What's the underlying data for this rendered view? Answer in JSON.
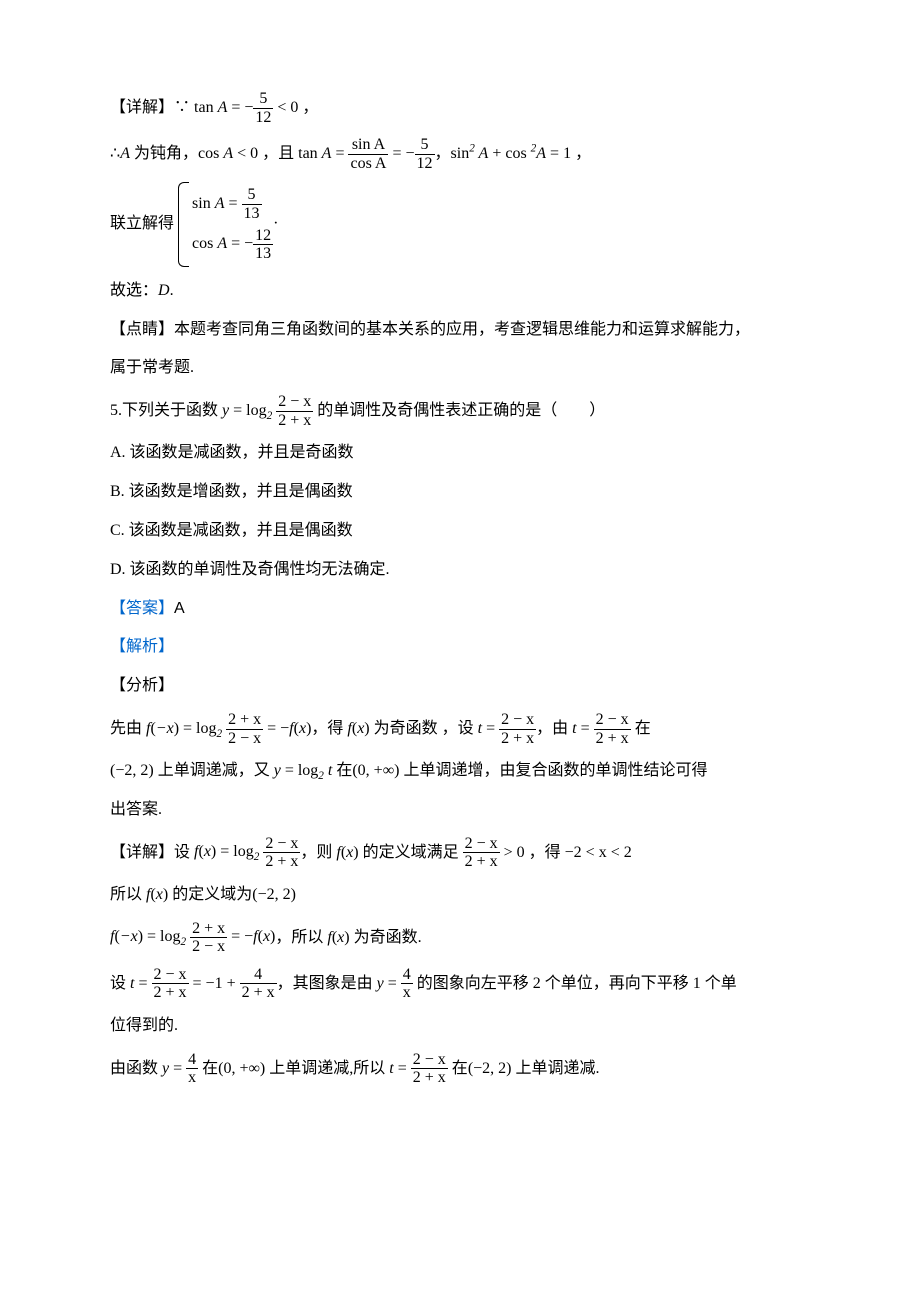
{
  "colors": {
    "text": "#000000",
    "blue": "#0066cc",
    "background": "#ffffff"
  },
  "detail_heading": "【详解】",
  "l1_p1": "∵ ",
  "l1_tan": "tan ",
  "l1_A": "A",
  "l1_eq": " = −",
  "l1_frac_num": "5",
  "l1_frac_den": "12",
  "l1_lt": " < 0 ，",
  "l2_pre": "∴",
  "l2_A": "A",
  "l2_p1": " 为钝角，",
  "l2_cos": "cos ",
  "l2_p2": " < 0 ，且 ",
  "l2_tan": "tan ",
  "l2_eqfrac_eq": " = ",
  "l2_frac1_num": "sin A",
  "l2_frac1_den": "cos A",
  "l2_eq2": " = −",
  "l2_frac2_num": "5",
  "l2_frac2_den": "12",
  "l2_comma": "，",
  "l2_sin2": "sin",
  "l2_sup2": "2",
  "l2_plus": " + ",
  "l2_eq1": " = 1 ，",
  "l3_label": "联立解得",
  "l3_row1_sin": "sin ",
  "l3_row1_A": "A",
  "l3_row1_eq": " = ",
  "l3_row1_num": "5",
  "l3_row1_den": "13",
  "l3_row2_cos": "cos ",
  "l3_row2_eq": " = −",
  "l3_row2_num": "12",
  "l3_row2_den": "13",
  "l3_dot": "·",
  "l4": "故选：",
  "l4_D": "D",
  "l4_dot": ".",
  "dianjing_heading": "【点睛】",
  "l5a": "本题考查同角三角函数间的基本关系的应用，考查逻辑思维能力和运算求解能力，",
  "l5b": "属于常考题.",
  "q5_pre": "5.下列关于函数 ",
  "q5_y": "y",
  "q5_eq": " = log",
  "q5_sub2": "2",
  "q5_sp": " ",
  "q5_frac_num": "2 − x",
  "q5_frac_den": "2 + x",
  "q5_post": " 的单调性及奇偶性表述正确的是（　　）",
  "optA": "A. 该函数是减函数，并且是奇函数",
  "optB": "B. 该函数是增函数，并且是偶函数",
  "optC": "C. 该函数是减函数，并且是偶函数",
  "optD": "D. 该函数的单调性及奇偶性均无法确定.",
  "answer_label": "【答案】",
  "answer_val": "A",
  "jiexi_label": "【解析】",
  "fenxi_label": "【分析】",
  "an1_pre": "先由 ",
  "an1_f": "f",
  "an1_paren_l": "(",
  "an1_negx": "−x",
  "an1_paren_r": ")",
  "an1_eq1": " = log",
  "an1_sub2": "2",
  "an1_frac1_num": "2 + x",
  "an1_frac1_den": "2 − x",
  "an1_eqneg": " = −",
  "an1_x": "x",
  "an1_mid": "，得 ",
  "an1_p2": " 为奇函数 ，设 ",
  "an1_t": "t",
  "an1_eq2": " = ",
  "an1_frac2_num": "2 − x",
  "an1_frac2_den": "2 + x",
  "an1_comma2": "，由 ",
  "an1_tail": " 在",
  "an2_int": "(−2, 2)",
  "an2_p1": " 上单调递减，又 ",
  "an2_y": "y",
  "an2_eqlog": " = log",
  "an2_t": " t",
  "an2_p2": " 在",
  "an2_int2": "(0, +∞)",
  "an2_p3": " 上单调递增，由复合函数的单调性结论可得",
  "an2_p4": "出答案.",
  "det2_heading": "【详解】",
  "d1_pre": "设 ",
  "d1_f": "f",
  "d1_x": "x",
  "d1_eqlog": " = log",
  "d1_frac_num": "2 − x",
  "d1_frac_den": "2 + x",
  "d1_mid": "，则 ",
  "d1_p2": " 的定义域满足 ",
  "d1_gt0": " > 0 ，得 ",
  "d1_range": "−2 < x < 2",
  "d2_pre": "所以 ",
  "d2_p2": " 的定义域为",
  "d2_int": "(−2, 2)",
  "d3_negx": "−x",
  "d3_eqlog": " = log",
  "d3_frac_num": "2 + x",
  "d3_frac_den": "2 − x",
  "d3_eqneg": " = −",
  "d3_mid": "，所以 ",
  "d3_p2": " 为奇函数.",
  "d4_pre": "设 ",
  "d4_t": "t",
  "d4_eq": " = ",
  "d4_frac1_num": "2 − x",
  "d4_frac1_den": "2 + x",
  "d4_eq2": " = −1 + ",
  "d4_frac2_num": "4",
  "d4_frac2_den": "2 + x",
  "d4_mid": "，其图象是由 ",
  "d4_y": "y",
  "d4_eq3": " = ",
  "d4_frac3_num": "4",
  "d4_frac3_den": "x",
  "d4_p2": " 的图象向左平移 2 个单位，再向下平移 1 个单",
  "d4b": "位得到的.",
  "d5_pre": "由函数 ",
  "d5_y": "y",
  "d5_eq": " = ",
  "d5_frac_num": "4",
  "d5_frac_den": "x",
  "d5_p1": " 在",
  "d5_int1": "(0, +∞)",
  "d5_p2": " 上单调递减,所以 ",
  "d5_t": "t",
  "d5_eq2": " = ",
  "d5_frac2_num": "2 − x",
  "d5_frac2_den": "2 + x",
  "d5_p3": " 在",
  "d5_int2": "(−2, 2)",
  "d5_p4": " 上单调递减."
}
